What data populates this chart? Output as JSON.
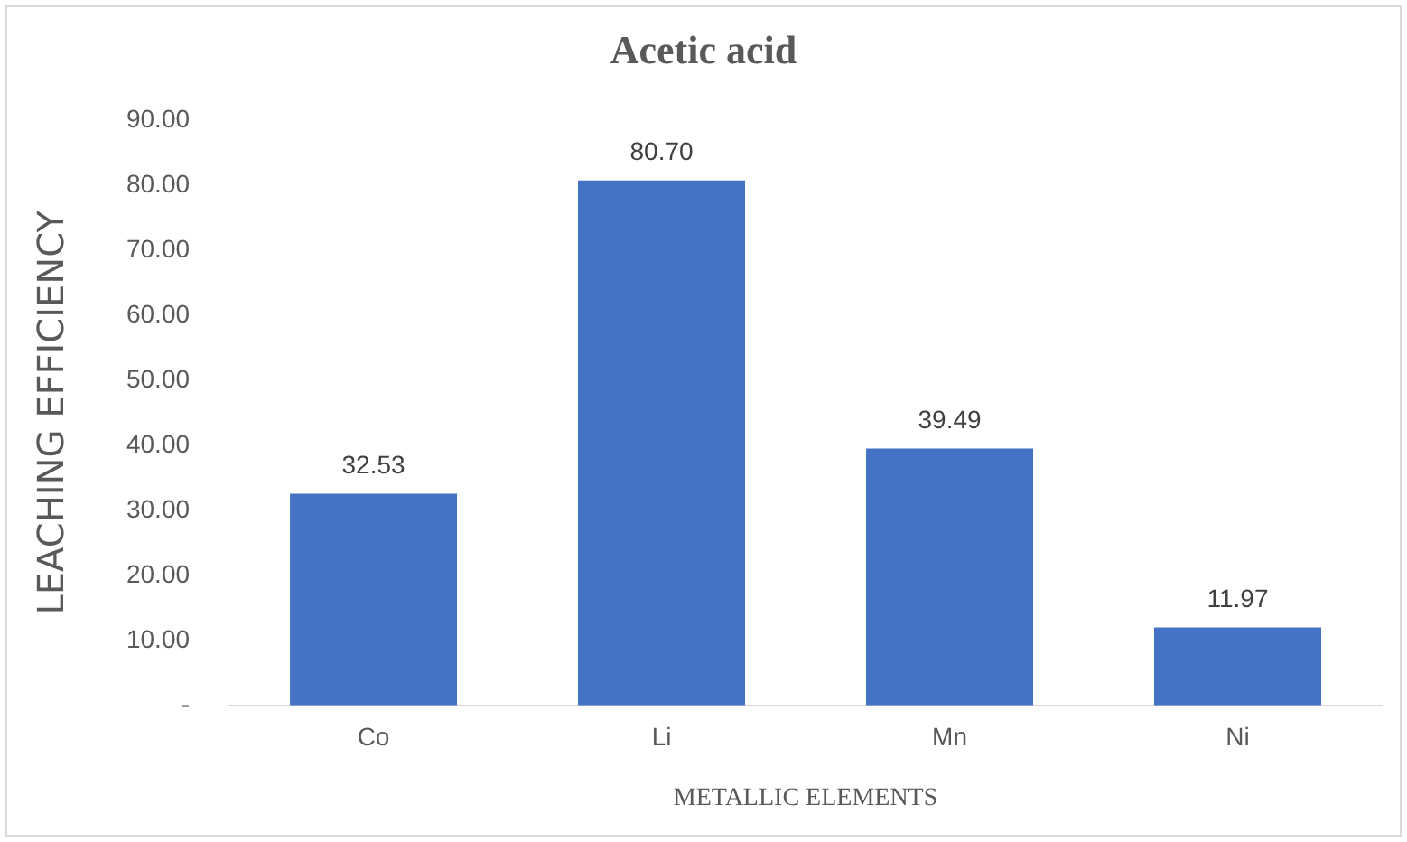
{
  "chart_data": {
    "type": "bar",
    "title": "Acetic acid",
    "xlabel": "METALLIC ELEMENTS",
    "ylabel": "LEACHING EFFICIENCY",
    "categories": [
      "Co",
      "Li",
      "Mn",
      "Ni"
    ],
    "values": [
      32.53,
      80.7,
      39.49,
      11.97
    ],
    "value_labels": [
      "32.53",
      "80.70",
      "39.49",
      "11.97"
    ],
    "color": "#4472c4",
    "ylim": [
      0,
      90
    ],
    "yticks": [
      {
        "value": 0,
        "label": "-"
      },
      {
        "value": 10,
        "label": "10.00"
      },
      {
        "value": 20,
        "label": "20.00"
      },
      {
        "value": 30,
        "label": "30.00"
      },
      {
        "value": 40,
        "label": "40.00"
      },
      {
        "value": 50,
        "label": "50.00"
      },
      {
        "value": 60,
        "label": "60.00"
      },
      {
        "value": 70,
        "label": "70.00"
      },
      {
        "value": 80,
        "label": "80.00"
      },
      {
        "value": 90,
        "label": "90.00"
      }
    ],
    "grid": false,
    "legend": false
  }
}
